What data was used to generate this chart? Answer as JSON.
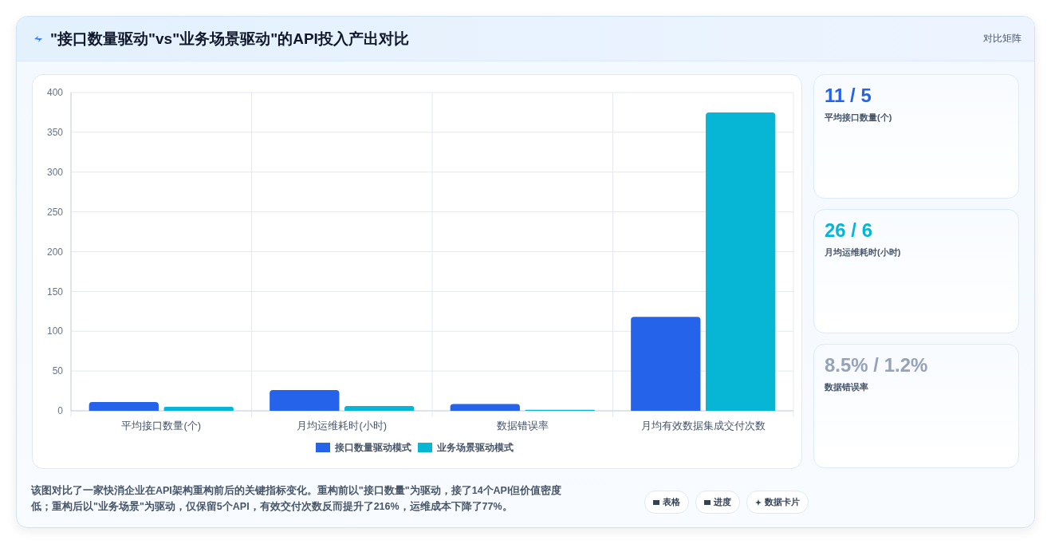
{
  "chart_data": [
    {
      "type": "bar",
      "title": "\"接口数量驱动\"vs\"业务场景驱动\"的API投入产出对比",
      "categories": [
        "平均接口数量(个)",
        "月均运维耗时(小时)",
        "数据错误率",
        "月均有效数据集成交付次数"
      ],
      "series": [
        {
          "name": "接口数量驱动模式",
          "color": "#2563eb",
          "values": [
            11,
            26,
            8.5,
            118
          ]
        },
        {
          "name": "业务场景驱动模式",
          "color": "#06b6d4",
          "values": [
            5,
            6,
            1.2,
            375
          ]
        }
      ],
      "ylim": [
        0,
        400
      ],
      "yticks": [
        0,
        50,
        100,
        150,
        200,
        250,
        300,
        350,
        400
      ],
      "grid": true,
      "legend": "bottom",
      "annotations": [
        "对比矩阵",
        "该图对比了一家快消企业在API架构重构前后的关键指标变化。重构前以\"接口数量\"为驱动，接了14个API但价值密度低；重构后以\"业务场景\"为驱动，仅保留5个API，有效交付次数反而提升了216%，运维成本下降了77%。",
        "表格",
        "进度",
        "数据卡片"
      ]
    },
    {
      "type": "other",
      "annotations": [
        "11 / 5",
        "平均接口数量(个)",
        "26 / 6",
        "月均运维耗时(小时)",
        "8.5% / 1.2%",
        "数据错误率"
      ],
      "colors": [
        "#2563eb",
        "#06b6d4",
        "#94a3b8"
      ]
    }
  ]
}
